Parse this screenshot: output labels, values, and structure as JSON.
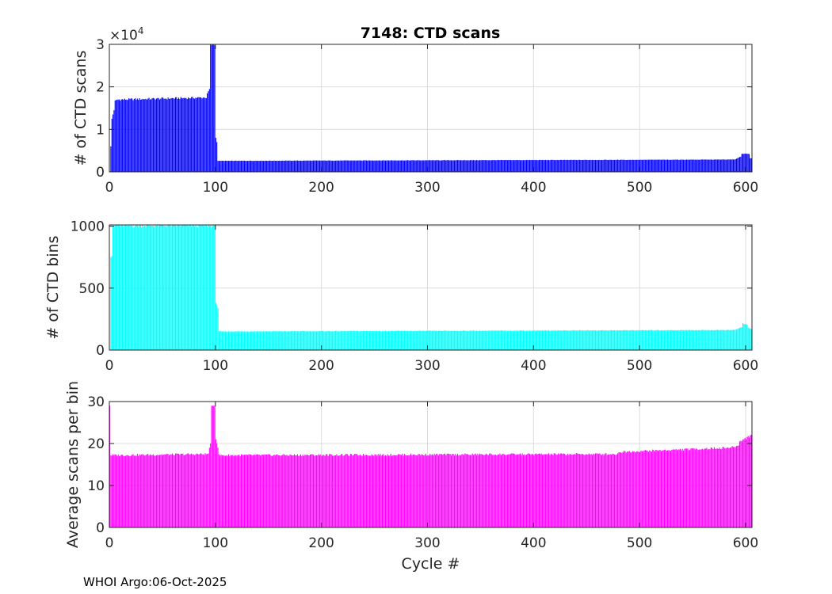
{
  "title": "7148: CTD scans",
  "footer": "WHOI Argo:06-Oct-2025",
  "grid_color": "#dcdcdc",
  "chart_data": [
    {
      "type": "bar",
      "name": "scans",
      "ylabel": "# of CTD scans",
      "xlabel": "",
      "xlim": [
        0,
        606
      ],
      "ylim": [
        0,
        30000
      ],
      "xticks": [
        0,
        100,
        200,
        300,
        400,
        500,
        600
      ],
      "yticks": [
        0,
        10000,
        20000,
        30000
      ],
      "ytick_labels": [
        "0",
        "1",
        "2",
        "3"
      ],
      "y_exponent_label": "×10",
      "y_exponent": "4",
      "grid": true,
      "color": "#0000ff",
      "segments": [
        {
          "x0": 1,
          "x1": 2,
          "y0": 6000,
          "y1": 6000
        },
        {
          "x0": 2,
          "x1": 3,
          "y0": 12500,
          "y1": 12500
        },
        {
          "x0": 3,
          "x1": 5,
          "y0": 13500,
          "y1": 14500
        },
        {
          "x0": 5,
          "x1": 8,
          "y0": 16800,
          "y1": 17000
        },
        {
          "x0": 8,
          "x1": 92,
          "y0": 17000,
          "y1": 17500
        },
        {
          "x0": 92,
          "x1": 94,
          "y0": 18500,
          "y1": 19000
        },
        {
          "x0": 94,
          "x1": 95,
          "y0": 19500,
          "y1": 19500
        },
        {
          "x0": 95,
          "x1": 100,
          "y0": 30000,
          "y1": 30000
        },
        {
          "x0": 100,
          "x1": 102,
          "y0": 8000,
          "y1": 7000
        },
        {
          "x0": 102,
          "x1": 590,
          "y0": 2600,
          "y1": 2900
        },
        {
          "x0": 590,
          "x1": 596,
          "y0": 3000,
          "y1": 3600
        },
        {
          "x0": 596,
          "x1": 604,
          "y0": 4300,
          "y1": 4200
        },
        {
          "x0": 604,
          "x1": 606,
          "y0": 3200,
          "y1": 3200
        }
      ]
    },
    {
      "type": "bar",
      "name": "bins",
      "ylabel": "# of CTD bins",
      "xlabel": "",
      "xlim": [
        0,
        606
      ],
      "ylim": [
        0,
        1010
      ],
      "xticks": [
        0,
        100,
        200,
        300,
        400,
        500,
        600
      ],
      "yticks": [
        0,
        500,
        1000
      ],
      "ytick_labels": [
        "0",
        "500",
        "1000"
      ],
      "grid": true,
      "color": "#00ffff",
      "segments": [
        {
          "x0": 1,
          "x1": 3,
          "y0": 750,
          "y1": 760
        },
        {
          "x0": 3,
          "x1": 6,
          "y0": 1000,
          "y1": 1005
        },
        {
          "x0": 6,
          "x1": 100,
          "y0": 1005,
          "y1": 1005
        },
        {
          "x0": 100,
          "x1": 103,
          "y0": 380,
          "y1": 340
        },
        {
          "x0": 103,
          "x1": 590,
          "y0": 150,
          "y1": 162
        },
        {
          "x0": 590,
          "x1": 597,
          "y0": 165,
          "y1": 185
        },
        {
          "x0": 597,
          "x1": 602,
          "y0": 215,
          "y1": 205
        },
        {
          "x0": 602,
          "x1": 606,
          "y0": 180,
          "y1": 170
        }
      ]
    },
    {
      "type": "bar",
      "name": "ratio",
      "ylabel": "Average scans per bin",
      "xlabel": "Cycle #",
      "xlim": [
        0,
        606
      ],
      "ylim": [
        0,
        30
      ],
      "xticks": [
        0,
        100,
        200,
        300,
        400,
        500,
        600
      ],
      "yticks": [
        0,
        10,
        20,
        30
      ],
      "ytick_labels": [
        "0",
        "10",
        "20",
        "30"
      ],
      "grid": true,
      "color": "#ff00ff",
      "segments": [
        {
          "x0": 0,
          "x1": 1,
          "y0": 29,
          "y1": 29
        },
        {
          "x0": 1,
          "x1": 94,
          "y0": 17.2,
          "y1": 17.5
        },
        {
          "x0": 94,
          "x1": 96,
          "y0": 19,
          "y1": 20
        },
        {
          "x0": 96,
          "x1": 100,
          "y0": 29,
          "y1": 29
        },
        {
          "x0": 100,
          "x1": 103,
          "y0": 21,
          "y1": 19
        },
        {
          "x0": 103,
          "x1": 480,
          "y0": 17.2,
          "y1": 17.5
        },
        {
          "x0": 480,
          "x1": 585,
          "y0": 18,
          "y1": 19
        },
        {
          "x0": 585,
          "x1": 594,
          "y0": 19,
          "y1": 19.5
        },
        {
          "x0": 594,
          "x1": 606,
          "y0": 20.5,
          "y1": 22
        }
      ]
    }
  ]
}
